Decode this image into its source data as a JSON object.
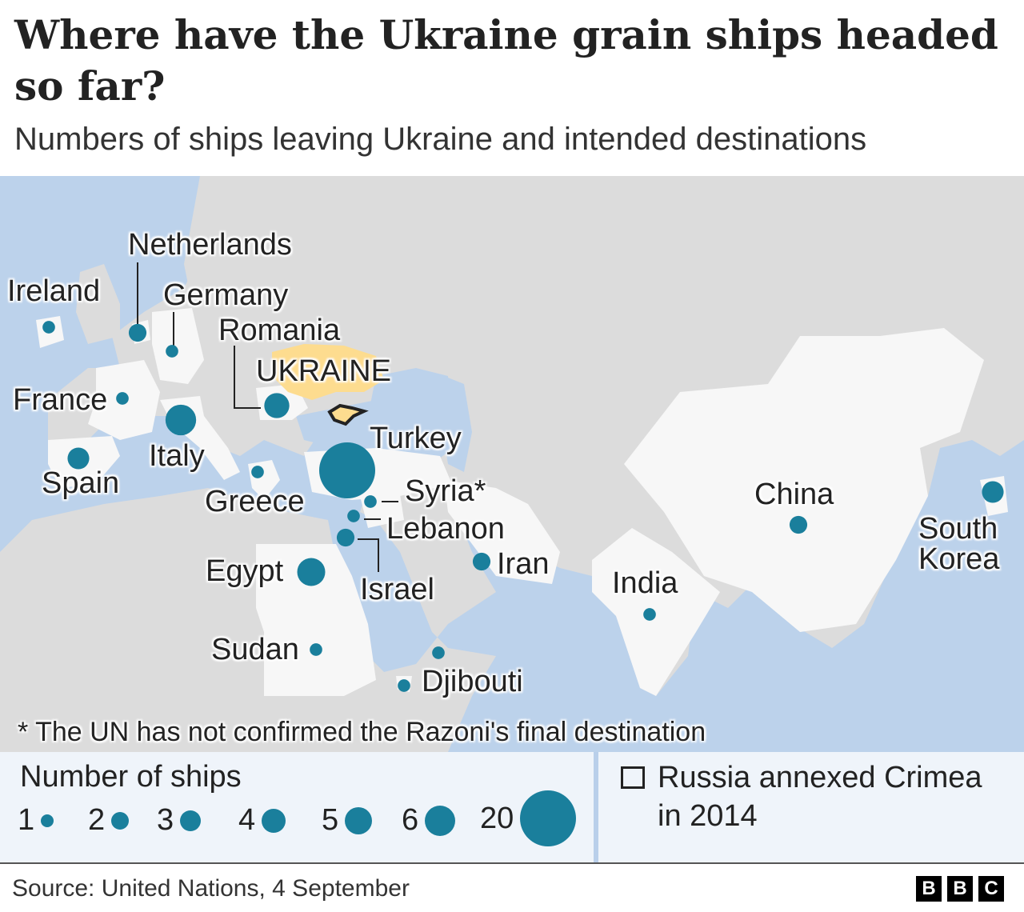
{
  "title": "Where have the Ukraine grain ships headed so far?",
  "subtitle": "Numbers of ships leaving Ukraine and intended destinations",
  "colors": {
    "bubble": "#1a7f9c",
    "sea": "#bcd2eb",
    "land": "#dcdcdc",
    "destination": "#f7f7f7",
    "ukraine": "#fddc8f"
  },
  "map": {
    "origin_label": "UKRAINE",
    "destinations": [
      {
        "name": "Ireland",
        "ships": 1
      },
      {
        "name": "Netherlands",
        "ships": 2
      },
      {
        "name": "Germany",
        "ships": 1
      },
      {
        "name": "France",
        "ships": 1
      },
      {
        "name": "Italy",
        "ships": 6
      },
      {
        "name": "Romania",
        "ships": 4
      },
      {
        "name": "Spain",
        "ships": 3
      },
      {
        "name": "Greece",
        "ships": 1
      },
      {
        "name": "Turkey",
        "ships": 20
      },
      {
        "name": "Syria*",
        "ships": 1
      },
      {
        "name": "Lebanon",
        "ships": 1
      },
      {
        "name": "Israel",
        "ships": 2
      },
      {
        "name": "Egypt",
        "ships": 5
      },
      {
        "name": "Iran",
        "ships": 2
      },
      {
        "name": "Sudan",
        "ships": 1
      },
      {
        "name": "",
        "ships": 1
      },
      {
        "name": "Djibouti",
        "ships": 1
      },
      {
        "name": "India",
        "ships": 1
      },
      {
        "name": "China",
        "ships": 2
      },
      {
        "name": "South Korea",
        "ships": 3
      }
    ],
    "footnote": "* The UN has not confirmed the Razoni's final destination"
  },
  "legend": {
    "title": "Number of ships",
    "items": [
      "1",
      "2",
      "3",
      "4",
      "5",
      "6",
      "20"
    ],
    "values": [
      1,
      2,
      3,
      4,
      5,
      6,
      20
    ],
    "crimea": "Russia annexed Crimea in 2014"
  },
  "source": "Source:  United Nations, 4 September",
  "logo": [
    "B",
    "B",
    "C"
  ]
}
